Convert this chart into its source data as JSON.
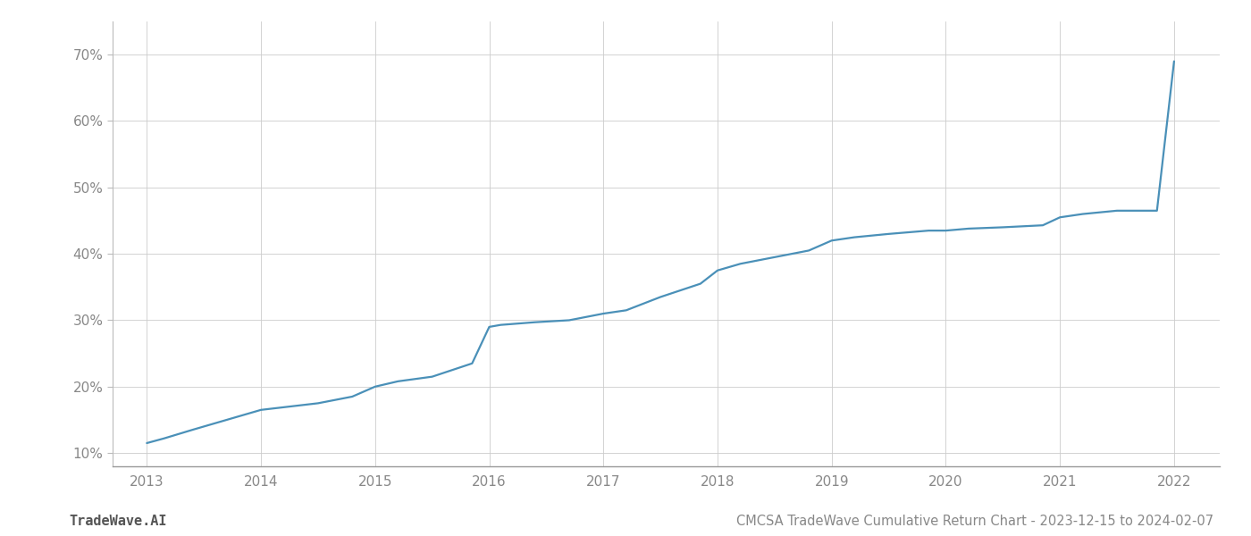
{
  "title": "CMCSA TradeWave Cumulative Return Chart - 2023-12-15 to 2024-02-07",
  "watermark": "TradeWave.AI",
  "line_color": "#4a90b8",
  "background_color": "#ffffff",
  "grid_color": "#cccccc",
  "x_years": [
    2013,
    2014,
    2015,
    2016,
    2017,
    2018,
    2019,
    2020,
    2021,
    2022
  ],
  "x_data": [
    2013.0,
    2013.15,
    2013.4,
    2013.7,
    2014.0,
    2014.25,
    2014.5,
    2014.8,
    2015.0,
    2015.2,
    2015.5,
    2015.85,
    2016.0,
    2016.1,
    2016.4,
    2016.7,
    2017.0,
    2017.2,
    2017.5,
    2017.85,
    2018.0,
    2018.2,
    2018.5,
    2018.8,
    2019.0,
    2019.2,
    2019.5,
    2019.85,
    2020.0,
    2020.2,
    2020.5,
    2020.85,
    2021.0,
    2021.2,
    2021.5,
    2021.85,
    2022.0
  ],
  "y_data": [
    11.5,
    12.2,
    13.5,
    15.0,
    16.5,
    17.0,
    17.5,
    18.5,
    20.0,
    20.8,
    21.5,
    23.5,
    29.0,
    29.3,
    29.7,
    30.0,
    31.0,
    31.5,
    33.5,
    35.5,
    37.5,
    38.5,
    39.5,
    40.5,
    42.0,
    42.5,
    43.0,
    43.5,
    43.5,
    43.8,
    44.0,
    44.3,
    45.5,
    46.0,
    46.5,
    46.5,
    69.0
  ],
  "ylim": [
    8,
    75
  ],
  "yticks": [
    10,
    20,
    30,
    40,
    50,
    60,
    70
  ],
  "xlim": [
    2012.7,
    2022.4
  ],
  "title_fontsize": 10.5,
  "watermark_fontsize": 11,
  "tick_label_color": "#888888",
  "line_width": 1.6
}
